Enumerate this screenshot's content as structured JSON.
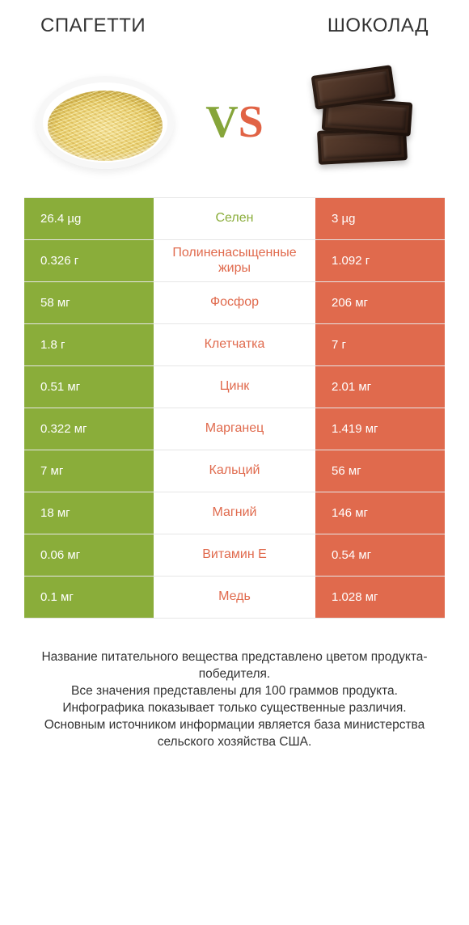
{
  "colors": {
    "green": "#8aad3a",
    "orange": "#e06a4d",
    "row_border": "#e6e6e6",
    "title": "#333333",
    "white": "#ffffff"
  },
  "header": {
    "left_title": "СПАГЕТТИ",
    "right_title": "ШОКОЛАД",
    "vs_v": "V",
    "vs_s": "S"
  },
  "rows": [
    {
      "label": "Селен",
      "left": "26.4 µg",
      "right": "3 µg",
      "winner": "left"
    },
    {
      "label": "Полиненасыщенные жиры",
      "left": "0.326 г",
      "right": "1.092 г",
      "winner": "right"
    },
    {
      "label": "Фосфор",
      "left": "58 мг",
      "right": "206 мг",
      "winner": "right"
    },
    {
      "label": "Клетчатка",
      "left": "1.8 г",
      "right": "7 г",
      "winner": "right"
    },
    {
      "label": "Цинк",
      "left": "0.51 мг",
      "right": "2.01 мг",
      "winner": "right"
    },
    {
      "label": "Марганец",
      "left": "0.322 мг",
      "right": "1.419 мг",
      "winner": "right"
    },
    {
      "label": "Кальций",
      "left": "7 мг",
      "right": "56 мг",
      "winner": "right"
    },
    {
      "label": "Магний",
      "left": "18 мг",
      "right": "146 мг",
      "winner": "right"
    },
    {
      "label": "Витамин E",
      "left": "0.06 мг",
      "right": "0.54 мг",
      "winner": "right"
    },
    {
      "label": "Медь",
      "left": "0.1 мг",
      "right": "1.028 мг",
      "winner": "right"
    }
  ],
  "footer": {
    "line1": "Название питательного вещества представлено цветом продукта-победителя.",
    "line2": "Все значения представлены для 100 граммов продукта.",
    "line3": "Инфографика показывает только существенные различия.",
    "line4": "Основным источником информации является база министерства сельского хозяйства США."
  }
}
